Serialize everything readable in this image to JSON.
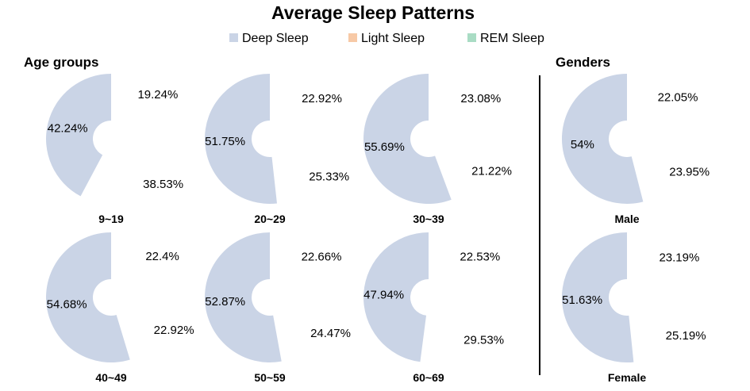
{
  "chart_data": {
    "type": "pie",
    "title": "Average Sleep Patterns",
    "legend_position": "top-center",
    "series": [
      {
        "name": "Deep Sleep",
        "color": "#cad4e6"
      },
      {
        "name": "Light Sleep",
        "color": "#f7c9a6"
      },
      {
        "name": "REM Sleep",
        "color": "#a9dcc4"
      }
    ],
    "panels": {
      "age": {
        "label": "Age groups",
        "charts": [
          {
            "category": "9~19",
            "deep": 42.24,
            "light": 19.24,
            "rem": 38.53,
            "deep_label": "42.24%",
            "light_label": "19.24%",
            "rem_label": "38.53%"
          },
          {
            "category": "20~29",
            "deep": 51.75,
            "light": 22.92,
            "rem": 25.33,
            "deep_label": "51.75%",
            "light_label": "22.92%",
            "rem_label": "25.33%"
          },
          {
            "category": "30~39",
            "deep": 55.69,
            "light": 23.08,
            "rem": 21.22,
            "deep_label": "55.69%",
            "light_label": "23.08%",
            "rem_label": "21.22%"
          },
          {
            "category": "40~49",
            "deep": 54.68,
            "light": 22.4,
            "rem": 22.92,
            "deep_label": "54.68%",
            "light_label": "22.4%",
            "rem_label": "22.92%"
          },
          {
            "category": "50~59",
            "deep": 52.87,
            "light": 22.66,
            "rem": 24.47,
            "deep_label": "52.87%",
            "light_label": "22.66%",
            "rem_label": "24.47%"
          },
          {
            "category": "60~69",
            "deep": 47.94,
            "light": 22.53,
            "rem": 29.53,
            "deep_label": "47.94%",
            "light_label": "22.53%",
            "rem_label": "29.53%"
          }
        ]
      },
      "gender": {
        "label": "Genders",
        "charts": [
          {
            "category": "Male",
            "deep": 54,
            "light": 22.05,
            "rem": 23.95,
            "deep_label": "54%",
            "light_label": "22.05%",
            "rem_label": "23.95%"
          },
          {
            "category": "Female",
            "deep": 51.63,
            "light": 23.19,
            "rem": 25.19,
            "deep_label": "51.63%",
            "light_label": "23.19%",
            "rem_label": "25.19%"
          }
        ]
      }
    }
  }
}
